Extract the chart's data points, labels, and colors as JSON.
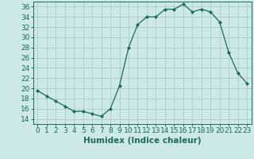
{
  "x": [
    0,
    1,
    2,
    3,
    4,
    5,
    6,
    7,
    8,
    9,
    10,
    11,
    12,
    13,
    14,
    15,
    16,
    17,
    18,
    19,
    20,
    21,
    22,
    23
  ],
  "y": [
    19.5,
    18.5,
    17.5,
    16.5,
    15.5,
    15.5,
    15.0,
    14.5,
    16.0,
    20.5,
    28.0,
    32.5,
    34.0,
    34.0,
    35.5,
    35.5,
    36.5,
    35.0,
    35.5,
    35.0,
    33.0,
    27.0,
    23.0,
    21.0
  ],
  "line_color": "#1a6b5a",
  "marker": "D",
  "marker_size": 2.0,
  "bg_color": "#cce8e8",
  "grid_color": "#b0d0d0",
  "xlabel": "Humidex (Indice chaleur)",
  "xlim": [
    -0.5,
    23.5
  ],
  "ylim": [
    13,
    37
  ],
  "yticks": [
    14,
    16,
    18,
    20,
    22,
    24,
    26,
    28,
    30,
    32,
    34,
    36
  ],
  "xticks": [
    0,
    1,
    2,
    3,
    4,
    5,
    6,
    7,
    8,
    9,
    10,
    11,
    12,
    13,
    14,
    15,
    16,
    17,
    18,
    19,
    20,
    21,
    22,
    23
  ],
  "font_size": 6.5,
  "xlabel_fontsize": 7.5
}
